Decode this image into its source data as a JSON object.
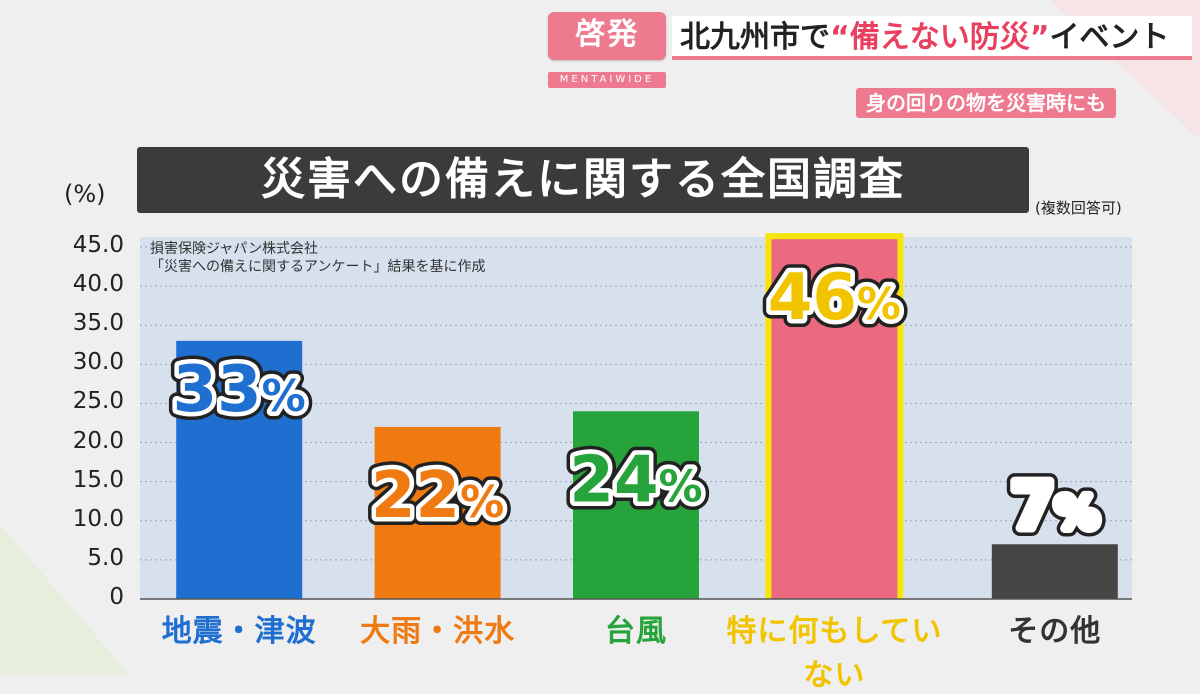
{
  "header": {
    "badge": "啓発",
    "badge_sub": "MENTAIWIDE",
    "headline_prefix": "北九州市で",
    "headline_accent": "“備えない防災”",
    "headline_suffix": "イベント",
    "subline": "身の回りの物を災害時にも"
  },
  "chart_data": {
    "type": "bar",
    "title": "災害への備えに関する全国調査",
    "ylabel": "(%)",
    "note": "(複数回答可)",
    "source": [
      "損害保険ジャパン株式会社",
      "「災害への備えに関するアンケート」結果を基に作成"
    ],
    "ylim": [
      0,
      45
    ],
    "yticks": [
      "45.0",
      "40.0",
      "35.0",
      "30.0",
      "25.0",
      "20.0",
      "15.0",
      "10.0",
      "5.0",
      "0"
    ],
    "grid": true,
    "categories": [
      "地震・津波",
      "大雨・洪水",
      "台風",
      "特に何もしていない",
      "その他"
    ],
    "values": [
      33,
      22,
      24,
      46,
      7
    ],
    "labels": [
      "33%",
      "22%",
      "24%",
      "46%",
      "7%"
    ],
    "bar_colors": [
      "#1f6fd1",
      "#ef7a12",
      "#26a33a",
      "#ec6a80",
      "#454545"
    ],
    "label_colors": [
      "#1f6fd1",
      "#ef7a12",
      "#26a33a",
      "#f2c400",
      "#333333"
    ],
    "highlight_index": 3,
    "highlight_color": "#f5e60a"
  }
}
